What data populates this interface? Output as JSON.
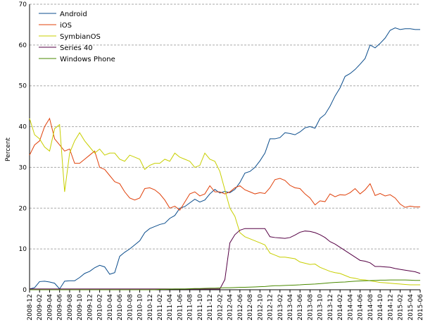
{
  "chart_data": {
    "type": "line",
    "ylabel": "Percent",
    "ylim": [
      0,
      70
    ],
    "yticks": [
      0,
      10,
      20,
      30,
      40,
      50,
      60,
      70
    ],
    "grid": true,
    "legend_position": "top-left",
    "x_labels": [
      "2008-12",
      "2009-02",
      "2009-04",
      "2009-06",
      "2009-08",
      "2009-10",
      "2009-12",
      "2010-02",
      "2010-04",
      "2010-06",
      "2010-08",
      "2010-10",
      "2010-12",
      "2011-02",
      "2011-04",
      "2011-06",
      "2011-08",
      "2011-10",
      "2011-12",
      "2012-02",
      "2012-04",
      "2012-06",
      "2012-08",
      "2012-10",
      "2012-12",
      "2013-02",
      "2013-04",
      "2013-06",
      "2013-08",
      "2013-10",
      "2013-12",
      "2014-02",
      "2014-04",
      "2014-06",
      "2014-08",
      "2014-10",
      "2014-12",
      "2015-02",
      "2015-04",
      "2015-06"
    ],
    "months": [
      "2008-12",
      "2009-01",
      "2009-02",
      "2009-03",
      "2009-04",
      "2009-05",
      "2009-06",
      "2009-07",
      "2009-08",
      "2009-09",
      "2009-10",
      "2009-11",
      "2009-12",
      "2010-01",
      "2010-02",
      "2010-03",
      "2010-04",
      "2010-05",
      "2010-06",
      "2010-07",
      "2010-08",
      "2010-09",
      "2010-10",
      "2010-11",
      "2010-12",
      "2011-01",
      "2011-02",
      "2011-03",
      "2011-04",
      "2011-05",
      "2011-06",
      "2011-07",
      "2011-08",
      "2011-09",
      "2011-10",
      "2011-11",
      "2011-12",
      "2012-01",
      "2012-02",
      "2012-03",
      "2012-04",
      "2012-05",
      "2012-06",
      "2012-07",
      "2012-08",
      "2012-09",
      "2012-10",
      "2012-11",
      "2012-12",
      "2013-01",
      "2013-02",
      "2013-03",
      "2013-04",
      "2013-05",
      "2013-06",
      "2013-07",
      "2013-08",
      "2013-09",
      "2013-10",
      "2013-11",
      "2013-12",
      "2014-01",
      "2014-02",
      "2014-03",
      "2014-04",
      "2014-05",
      "2014-06",
      "2014-07",
      "2014-08",
      "2014-09",
      "2014-10",
      "2014-11",
      "2014-12",
      "2015-01",
      "2015-02",
      "2015-03",
      "2015-04",
      "2015-05",
      "2015-06"
    ],
    "series": [
      {
        "name": "Android",
        "color": "#0b4d8c",
        "values": [
          0.2,
          0.5,
          2.0,
          2.1,
          1.9,
          1.6,
          0.2,
          2.1,
          2.2,
          2.2,
          3.0,
          4.0,
          4.5,
          5.4,
          6.0,
          5.6,
          3.8,
          4.2,
          8.2,
          9.2,
          10.0,
          11.0,
          12.0,
          14.0,
          15.0,
          15.5,
          16.0,
          16.3,
          17.5,
          18.2,
          20.0,
          20.4,
          21.3,
          22.2,
          21.5,
          22.0,
          23.5,
          24.6,
          23.7,
          24.1,
          23.8,
          24.6,
          26.3,
          28.6,
          29.0,
          30.0,
          31.6,
          33.5,
          37.0,
          37.0,
          37.3,
          38.5,
          38.3,
          38.0,
          38.7,
          39.7,
          40.0,
          39.6,
          42.0,
          43.0,
          45.0,
          47.5,
          49.5,
          52.3,
          53.0,
          54.0,
          55.3,
          56.7,
          60.0,
          59.3,
          60.4,
          61.7,
          63.6,
          64.2,
          63.8,
          64.0,
          64.0,
          63.8,
          63.8
        ]
      },
      {
        "name": "iOS",
        "color": "#e0400a",
        "values": [
          33.0,
          35.5,
          36.5,
          40.0,
          42.0,
          37.0,
          35.5,
          34.0,
          34.5,
          31.0,
          31.0,
          32.0,
          33.0,
          34.0,
          30.0,
          29.5,
          28.0,
          26.5,
          26.0,
          24.0,
          22.5,
          22.0,
          22.5,
          24.8,
          25.0,
          24.5,
          23.5,
          22.0,
          20.0,
          20.5,
          19.5,
          21.5,
          23.5,
          24.0,
          23.0,
          23.5,
          25.5,
          24.0,
          24.0,
          23.5,
          24.0,
          25.0,
          25.5,
          24.5,
          24.0,
          23.5,
          23.8,
          23.6,
          25.0,
          27.0,
          27.3,
          26.8,
          25.6,
          25.0,
          24.8,
          23.5,
          22.5,
          20.8,
          21.8,
          21.6,
          23.5,
          22.8,
          23.3,
          23.2,
          23.8,
          24.8,
          23.5,
          24.5,
          26.0,
          23.1,
          23.6,
          23.0,
          23.3,
          22.5,
          21.0,
          20.2,
          20.5,
          20.3,
          20.3
        ]
      },
      {
        "name": "SymbianOS",
        "color": "#c8cf00",
        "values": [
          42.0,
          38.0,
          37.0,
          35.0,
          34.0,
          39.5,
          40.5,
          24.0,
          33.5,
          36.5,
          38.5,
          36.5,
          35.0,
          33.5,
          34.5,
          33.0,
          33.5,
          33.5,
          32.0,
          31.5,
          33.0,
          32.5,
          32.0,
          29.5,
          30.5,
          31.0,
          31.0,
          32.0,
          31.5,
          33.5,
          32.5,
          32.0,
          31.5,
          30.0,
          30.5,
          33.5,
          32.0,
          31.5,
          29.0,
          24.5,
          20.0,
          18.0,
          14.0,
          13.0,
          12.5,
          12.0,
          11.5,
          11.0,
          9.0,
          8.5,
          8.0,
          8.0,
          7.8,
          7.6,
          6.8,
          6.5,
          6.2,
          6.3,
          5.5,
          5.0,
          4.5,
          4.2,
          4.0,
          3.5,
          3.0,
          2.8,
          2.5,
          2.4,
          2.2,
          2.0,
          1.8,
          1.7,
          1.6,
          1.5,
          1.4,
          1.3,
          1.2,
          1.2,
          1.2
        ]
      },
      {
        "name": "Series 40",
        "color": "#550044",
        "values": [
          0.2,
          0.2,
          0.2,
          0.2,
          0.2,
          0.2,
          0.2,
          0.2,
          0.2,
          0.2,
          0.2,
          0.2,
          0.2,
          0.2,
          0.2,
          0.2,
          0.2,
          0.2,
          0.2,
          0.2,
          0.2,
          0.2,
          0.2,
          0.2,
          0.2,
          0.2,
          0.2,
          0.2,
          0.2,
          0.2,
          0.2,
          0.2,
          0.2,
          0.2,
          0.2,
          0.2,
          0.2,
          0.2,
          0.2,
          2.5,
          11.5,
          13.5,
          14.6,
          15.0,
          15.0,
          15.0,
          15.0,
          15.0,
          13.0,
          12.8,
          12.7,
          12.6,
          12.8,
          13.4,
          14.1,
          14.4,
          14.3,
          14.0,
          13.5,
          12.8,
          11.8,
          11.2,
          10.4,
          9.6,
          8.8,
          8.0,
          7.2,
          7.0,
          6.6,
          5.7,
          5.7,
          5.6,
          5.5,
          5.2,
          5.0,
          4.8,
          4.6,
          4.4,
          4.0
        ]
      },
      {
        "name": "Windows Phone",
        "color": "#4a8a00",
        "values": [
          0.0,
          0.0,
          0.0,
          0.0,
          0.0,
          0.0,
          0.0,
          0.0,
          0.0,
          0.0,
          0.0,
          0.0,
          0.0,
          0.0,
          0.0,
          0.0,
          0.0,
          0.0,
          0.0,
          0.0,
          0.0,
          0.0,
          0.0,
          0.0,
          0.0,
          0.0,
          0.1,
          0.1,
          0.15,
          0.2,
          0.2,
          0.2,
          0.25,
          0.3,
          0.3,
          0.35,
          0.4,
          0.4,
          0.45,
          0.5,
          0.5,
          0.55,
          0.6,
          0.6,
          0.65,
          0.7,
          0.75,
          0.8,
          0.9,
          1.0,
          1.0,
          1.05,
          1.1,
          1.15,
          1.2,
          1.3,
          1.35,
          1.4,
          1.5,
          1.6,
          1.7,
          1.8,
          1.85,
          1.9,
          2.0,
          2.1,
          2.15,
          2.2,
          2.25,
          2.3,
          2.35,
          2.35,
          2.4,
          2.4,
          2.4,
          2.4,
          2.35,
          2.3,
          2.3
        ]
      }
    ]
  }
}
